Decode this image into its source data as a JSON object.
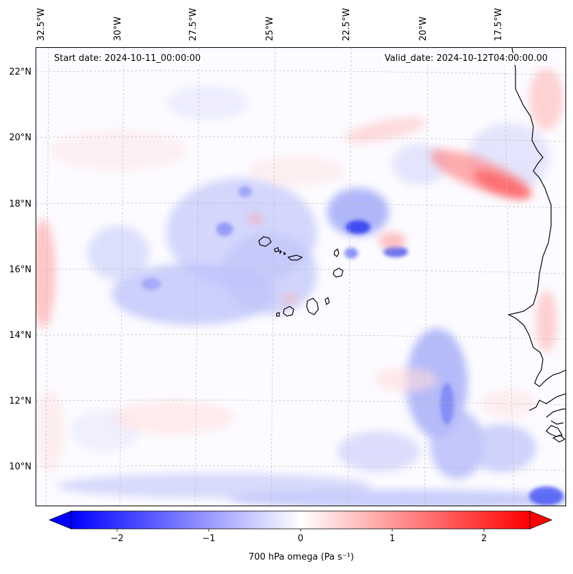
{
  "map": {
    "start_date": "Start date: 2024-10-11_00:00:00",
    "valid_date": "Valid_date: 2024-10-12T04:00:00.00",
    "lon_labels": [
      "32.5°W",
      "30°W",
      "27.5°W",
      "25°W",
      "22.5°W",
      "20°W",
      "17.5°W"
    ],
    "lat_labels": [
      "22°N",
      "20°N",
      "18°N",
      "16°N",
      "14°N",
      "12°N",
      "10°N"
    ],
    "extent": {
      "lon_min": -32.7,
      "lon_max": -15.2,
      "lat_min": 8.8,
      "lat_max": 22.8
    },
    "variable": "700 hPa omega",
    "colormap": "bwr",
    "colors": {
      "negative": "#0000ff",
      "zero": "#ffffff",
      "positive": "#ff0000",
      "coastline": "#000000"
    },
    "colorbar": {
      "label": "700 hPa omega (Pa s⁻¹)",
      "range": [
        -2.5,
        2.5
      ],
      "ticks": [
        "−2",
        "−1",
        "0",
        "1",
        "2"
      ],
      "extend": "both"
    }
  }
}
